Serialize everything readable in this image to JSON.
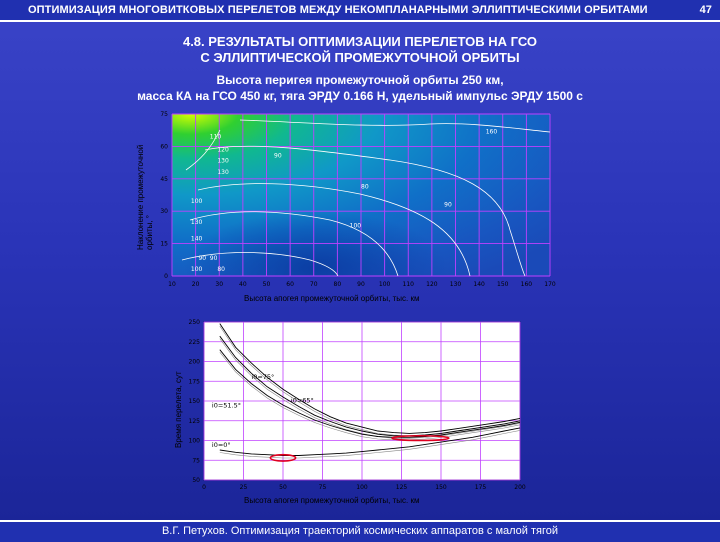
{
  "header": {
    "title": "ОПТИМИЗАЦИЯ МНОГОВИТКОВЫХ ПЕРЕЛЕТОВ МЕЖДУ НЕКОМПЛАНАРНЫМИ ЭЛЛИПТИЧЕСКИМИ ОРБИТАМИ",
    "page": "47"
  },
  "slide": {
    "title_line1": "4.8. РЕЗУЛЬТАТЫ ОПТИМИЗАЦИИ ПЕРЕЛЕТОВ НА ГСО",
    "title_line2": "С ЭЛЛИПТИЧЕСКОЙ ПРОМЕЖУТОЧНОЙ ОРБИТЫ",
    "subtitle_line1": "Высота перигея промежуточной орбиты 250 км,",
    "subtitle_line2": "масса КА на ГСО 450 кг, тяга ЭРДУ 0.166 Н, удельный импульс ЭРДУ 1500 с"
  },
  "footer": {
    "text": "В.Г. Петухов. Оптимизация траекторий космических аппаратов с малой тягой"
  },
  "chart_data": [
    {
      "type": "heatmap",
      "title": "",
      "xlabel": "Высота апогея промежуточной орбиты, тыс. км",
      "ylabel": "Наклонение промежуточной орбиты, °",
      "x_ticks": [
        "10",
        "20",
        "30",
        "40",
        "50",
        "60",
        "70",
        "80",
        "90",
        "100",
        "110",
        "120",
        "130",
        "140",
        "150",
        "160",
        "170"
      ],
      "y_ticks": [
        "0",
        "15",
        "30",
        "45",
        "60",
        "75"
      ],
      "xlim": [
        10,
        170
      ],
      "ylim": [
        0,
        75
      ],
      "contour_labels": [
        "160",
        "110",
        "120",
        "130",
        "130",
        "90",
        "80",
        "90",
        "100",
        "100",
        "130",
        "140",
        "90",
        "90",
        "100",
        "80"
      ],
      "grid": true
    },
    {
      "type": "line",
      "title": "",
      "xlabel": "Высота апогея промежуточной орбиты, тыс. км",
      "ylabel": "Время перелета, сут",
      "x_ticks": [
        "0",
        "25",
        "50",
        "75",
        "100",
        "125",
        "150",
        "175",
        "200"
      ],
      "y_ticks": [
        "50",
        "75",
        "100",
        "125",
        "150",
        "175",
        "200",
        "225",
        "250"
      ],
      "xlim": [
        0,
        200
      ],
      "ylim": [
        50,
        250
      ],
      "series": [
        {
          "name": "i0=75°",
          "x": [
            10,
            20,
            30,
            40,
            50,
            60,
            70,
            80,
            90,
            100,
            110,
            120,
            130,
            140,
            150,
            160,
            170,
            180,
            190,
            200
          ],
          "values": [
            248,
            218,
            198,
            180,
            165,
            152,
            140,
            130,
            122,
            117,
            112,
            110,
            109,
            110,
            112,
            115,
            118,
            121,
            124,
            128
          ]
        },
        {
          "name": "i0=65°",
          "x": [
            10,
            20,
            30,
            40,
            50,
            60,
            70,
            80,
            90,
            100,
            110,
            120,
            130,
            140,
            150,
            160,
            170,
            180,
            190,
            200
          ],
          "values": [
            232,
            205,
            185,
            168,
            155,
            143,
            132,
            124,
            117,
            112,
            108,
            106,
            106,
            107,
            109,
            112,
            115,
            118,
            121,
            125
          ]
        },
        {
          "name": "i0=51.5°",
          "x": [
            10,
            20,
            30,
            40,
            50,
            60,
            70,
            80,
            90,
            100,
            110,
            120,
            130,
            140,
            150,
            160,
            170,
            180,
            190,
            200
          ],
          "values": [
            215,
            190,
            172,
            157,
            145,
            135,
            126,
            119,
            113,
            108,
            105,
            104,
            104,
            105,
            107,
            110,
            113,
            116,
            119,
            123
          ]
        },
        {
          "name": "i0=0°",
          "x": [
            10,
            20,
            30,
            40,
            50,
            60,
            70,
            80,
            90,
            100,
            110,
            120,
            130,
            140,
            150,
            160,
            170,
            180,
            190,
            200
          ],
          "values": [
            88,
            85,
            83,
            82,
            81,
            81,
            82,
            83,
            84,
            86,
            88,
            90,
            92,
            95,
            98,
            101,
            104,
            108,
            112,
            116
          ]
        }
      ],
      "annotations": [
        "i0=75°",
        "i0=65°",
        "i0=51.5°",
        "i0=0°"
      ],
      "highlights": [
        {
          "x": 50,
          "y": 78,
          "rx": 8,
          "ry": 4
        },
        {
          "x": 137,
          "y": 103,
          "rx": 18,
          "ry": 3
        }
      ],
      "grid": true
    }
  ],
  "colors": {
    "background": "#2a34b8",
    "header": "#2030b0",
    "grid": "#c040ff"
  }
}
